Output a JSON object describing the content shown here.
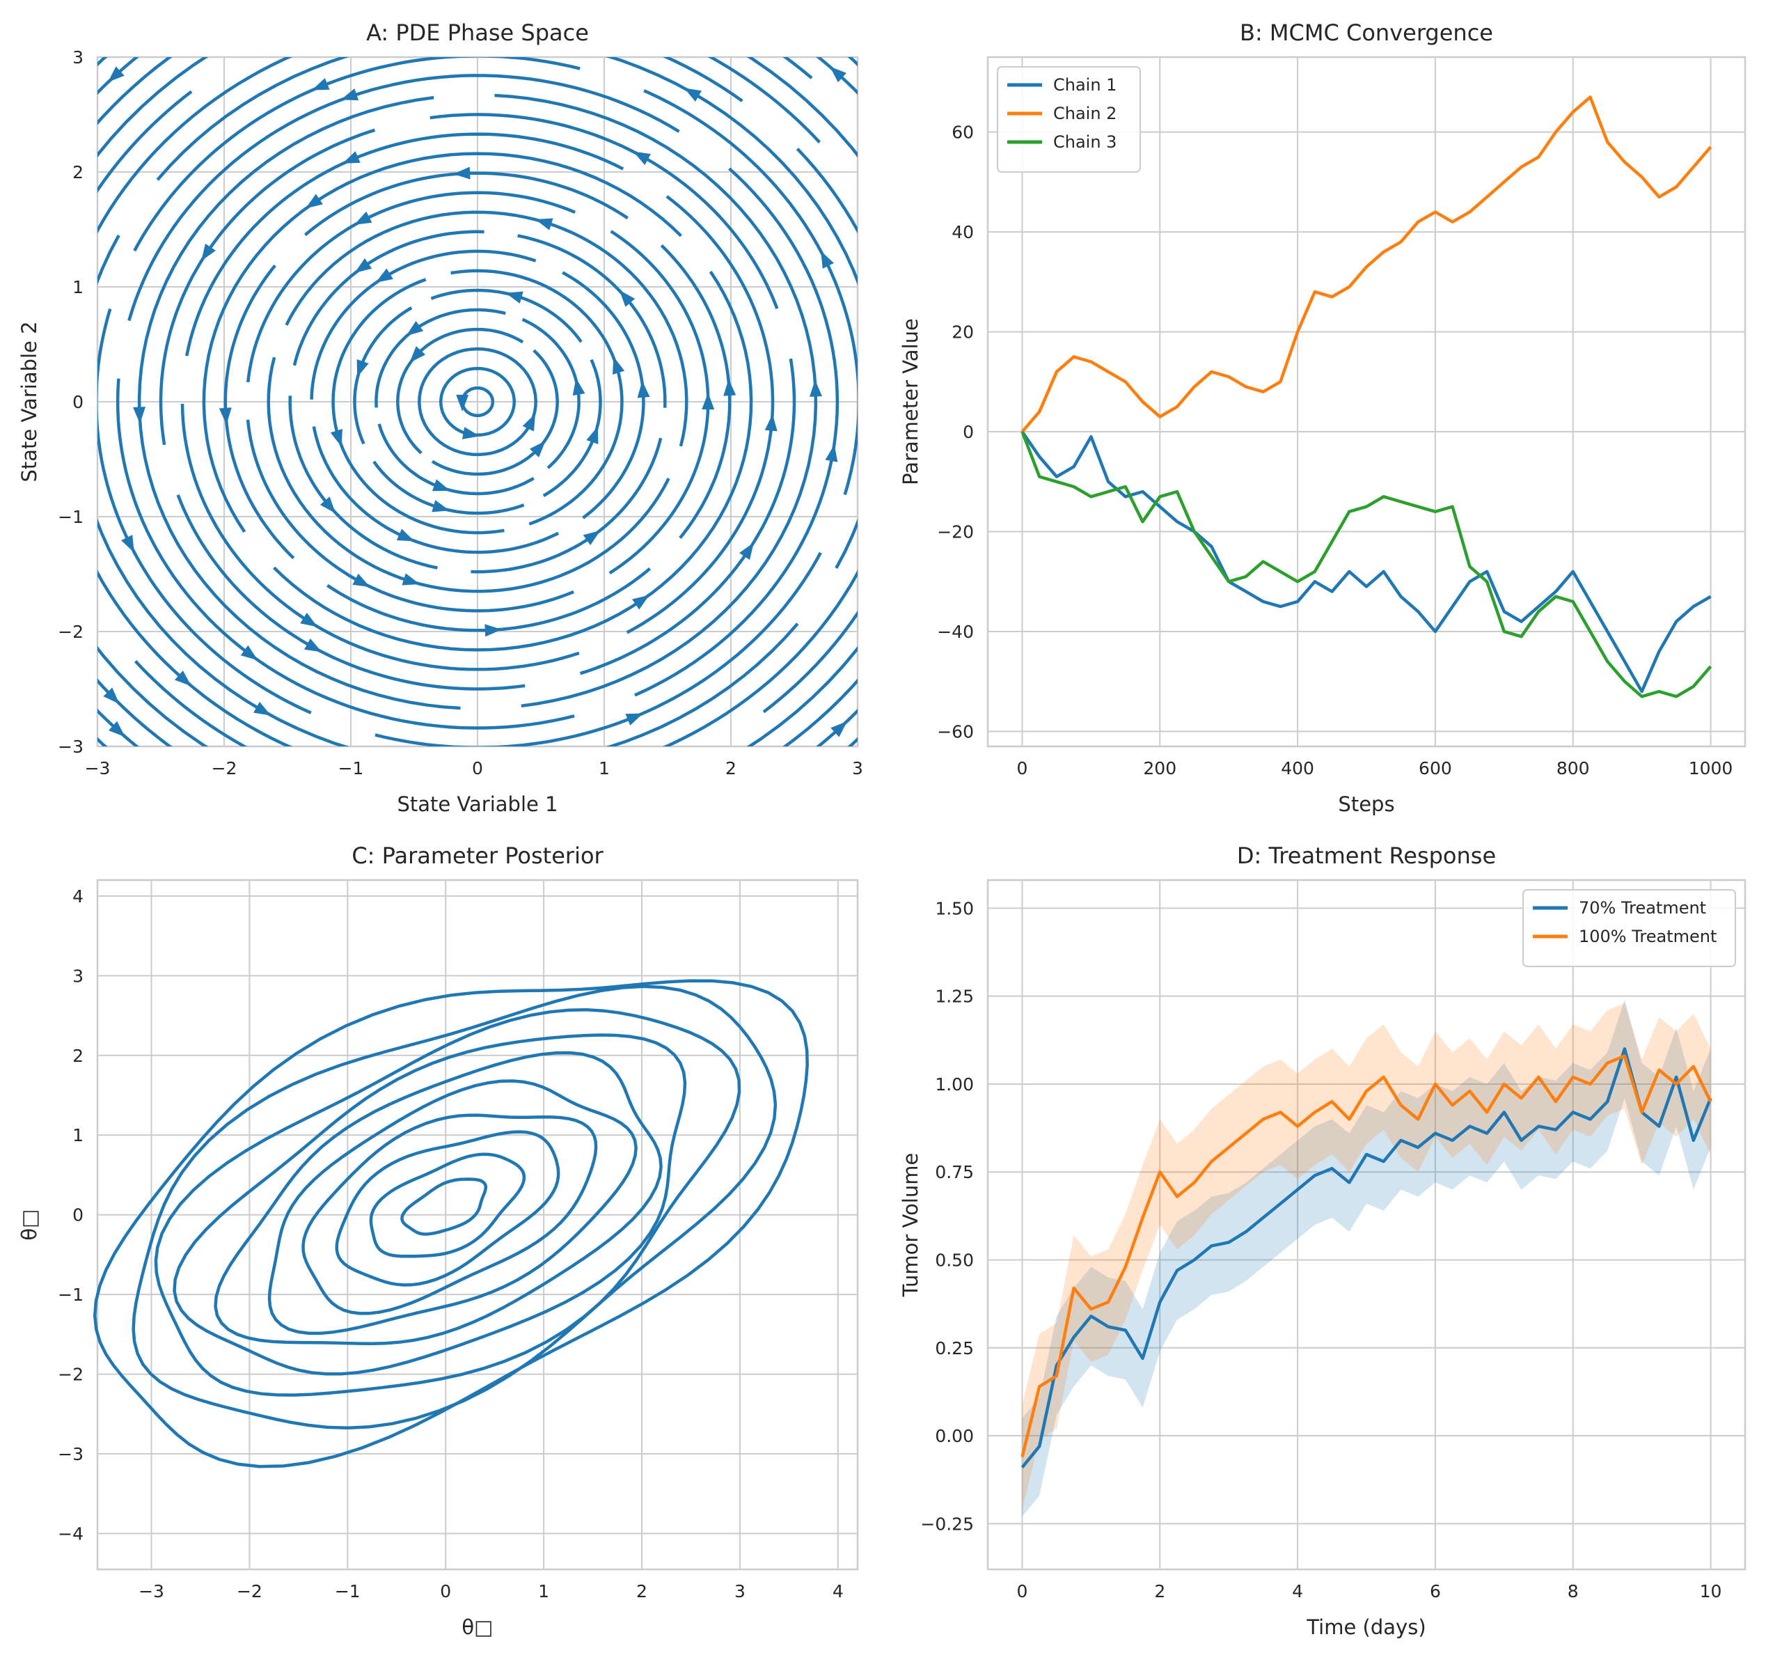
{
  "chart_data": [
    {
      "id": "A",
      "type": "streamplot",
      "title": "A: PDE Phase Space",
      "xlabel": "State Variable 1",
      "ylabel": "State Variable 2",
      "xlim": [
        -3,
        3
      ],
      "ylim": [
        -3,
        3
      ],
      "xticks": [
        -3,
        -2,
        -1,
        0,
        1,
        2,
        3
      ],
      "yticks": [
        -3,
        -2,
        -1,
        0,
        1,
        2,
        3
      ],
      "grid": true,
      "color": "#1f77b4",
      "flow": "counter-clockwise rotation about origin (dx = -y, dy = x)"
    },
    {
      "id": "B",
      "type": "line",
      "title": "B: MCMC Convergence",
      "xlabel": "Steps",
      "ylabel": "Parameter Value",
      "xlim": [
        -50,
        1050
      ],
      "ylim": [
        -63,
        75
      ],
      "xticks": [
        0,
        200,
        400,
        600,
        800,
        1000
      ],
      "yticks": [
        -60,
        -40,
        -20,
        0,
        20,
        40,
        60
      ],
      "grid": true,
      "legend": "top-left",
      "x": [
        0,
        25,
        50,
        75,
        100,
        125,
        150,
        175,
        200,
        225,
        250,
        275,
        300,
        325,
        350,
        375,
        400,
        425,
        450,
        475,
        500,
        525,
        550,
        575,
        600,
        625,
        650,
        675,
        700,
        725,
        750,
        775,
        800,
        825,
        850,
        875,
        900,
        925,
        950,
        975,
        1000
      ],
      "series": [
        {
          "name": "Chain 1",
          "color": "#1f77b4",
          "values": [
            0,
            -5,
            -9,
            -7,
            -1,
            -10,
            -13,
            -12,
            -15,
            -18,
            -20,
            -23,
            -30,
            -32,
            -34,
            -35,
            -34,
            -30,
            -32,
            -28,
            -31,
            -28,
            -33,
            -36,
            -40,
            -35,
            -30,
            -28,
            -36,
            -38,
            -35,
            -32,
            -28,
            -34,
            -40,
            -46,
            -52,
            -44,
            -38,
            -35,
            -33
          ]
        },
        {
          "name": "Chain 2",
          "color": "#ff7f0e",
          "values": [
            0,
            4,
            12,
            15,
            14,
            12,
            10,
            6,
            3,
            5,
            9,
            12,
            11,
            9,
            8,
            10,
            20,
            28,
            27,
            29,
            33,
            36,
            38,
            42,
            44,
            42,
            44,
            47,
            50,
            53,
            55,
            60,
            64,
            67,
            58,
            54,
            51,
            47,
            49,
            53,
            57
          ]
        },
        {
          "name": "Chain 3",
          "color": "#2ca02c",
          "values": [
            0,
            -9,
            -10,
            -11,
            -13,
            -12,
            -11,
            -18,
            -13,
            -12,
            -20,
            -25,
            -30,
            -29,
            -26,
            -28,
            -30,
            -28,
            -22,
            -16,
            -15,
            -13,
            -14,
            -15,
            -16,
            -15,
            -27,
            -30,
            -40,
            -41,
            -36,
            -33,
            -34,
            -40,
            -46,
            -50,
            -53,
            -52,
            -53,
            -51,
            -47
          ]
        }
      ]
    },
    {
      "id": "C",
      "type": "contour",
      "title": "C: Parameter Posterior",
      "xlabel": "θ□",
      "ylabel": "θ□",
      "xlim": [
        -3.55,
        4.2
      ],
      "ylim": [
        -4.45,
        4.2
      ],
      "xticks": [
        -3,
        -2,
        -1,
        0,
        1,
        2,
        3,
        4
      ],
      "yticks": [
        -4,
        -3,
        -2,
        -1,
        0,
        1,
        2,
        3,
        4
      ],
      "grid": true,
      "color": "#1f77b4",
      "levels": 10,
      "mean": [
        0.0,
        0.1
      ],
      "correlation": "positive"
    },
    {
      "id": "D",
      "type": "line",
      "title": "D: Treatment Response",
      "xlabel": "Time (days)",
      "ylabel": "Tumor Volume",
      "xlim": [
        -0.5,
        10.5
      ],
      "ylim": [
        -0.38,
        1.58
      ],
      "xticks": [
        0,
        2,
        4,
        6,
        8,
        10
      ],
      "yticks": [
        -0.25,
        0.0,
        0.25,
        0.5,
        0.75,
        1.0,
        1.25,
        1.5
      ],
      "ytick_labels": [
        "−0.25",
        "0.00",
        "0.25",
        "0.50",
        "0.75",
        "1.00",
        "1.25",
        "1.50"
      ],
      "grid": true,
      "legend": "top-right",
      "x": [
        0,
        0.25,
        0.5,
        0.75,
        1.0,
        1.25,
        1.5,
        1.75,
        2.0,
        2.25,
        2.5,
        2.75,
        3.0,
        3.25,
        3.5,
        3.75,
        4.0,
        4.25,
        4.5,
        4.75,
        5.0,
        5.25,
        5.5,
        5.75,
        6.0,
        6.25,
        6.5,
        6.75,
        7.0,
        7.25,
        7.5,
        7.75,
        8.0,
        8.25,
        8.5,
        8.75,
        9.0,
        9.25,
        9.5,
        9.75,
        10.0
      ],
      "series": [
        {
          "name": "70% Treatment",
          "color": "#1f77b4",
          "band": 0.14,
          "values": [
            -0.09,
            -0.03,
            0.2,
            0.28,
            0.34,
            0.31,
            0.3,
            0.22,
            0.38,
            0.47,
            0.5,
            0.54,
            0.55,
            0.58,
            0.62,
            0.66,
            0.7,
            0.74,
            0.76,
            0.72,
            0.8,
            0.78,
            0.84,
            0.82,
            0.86,
            0.84,
            0.88,
            0.86,
            0.92,
            0.84,
            0.88,
            0.87,
            0.92,
            0.9,
            0.95,
            1.1,
            0.92,
            0.88,
            1.02,
            0.84,
            0.96
          ]
        },
        {
          "name": "100% Treatment",
          "color": "#ff7f0e",
          "band": 0.15,
          "values": [
            -0.06,
            0.14,
            0.17,
            0.42,
            0.36,
            0.38,
            0.48,
            0.62,
            0.75,
            0.68,
            0.72,
            0.78,
            0.82,
            0.86,
            0.9,
            0.92,
            0.88,
            0.92,
            0.95,
            0.9,
            0.98,
            1.02,
            0.94,
            0.9,
            1.0,
            0.94,
            0.98,
            0.92,
            1.0,
            0.96,
            1.02,
            0.95,
            1.02,
            1.0,
            1.06,
            1.08,
            0.92,
            1.04,
            1.0,
            1.05,
            0.95
          ]
        }
      ]
    }
  ]
}
